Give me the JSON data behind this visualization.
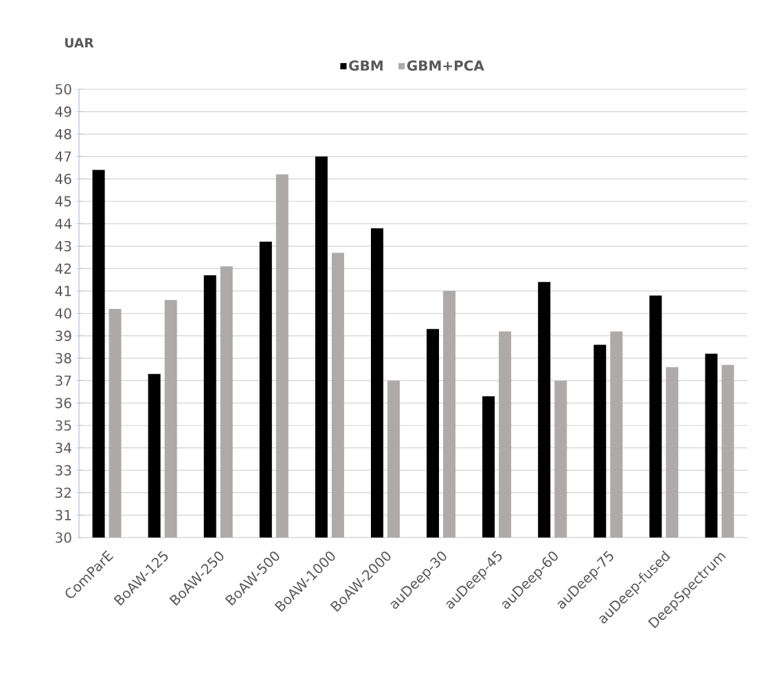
{
  "chart_data": {
    "type": "bar",
    "ylabel": "UAR",
    "categories": [
      "ComParE",
      "BoAW-125",
      "BoAW-250",
      "BoAW-500",
      "BoAW-1000",
      "BoAW-2000",
      "auDeep-30",
      "auDeep-45",
      "auDeep-60",
      "auDeep-75",
      "auDeep-fused",
      "DeepSpectrum"
    ],
    "series": [
      {
        "name": "GBM",
        "color": "#000000",
        "values": [
          46.4,
          37.3,
          41.7,
          43.2,
          47.0,
          43.8,
          39.3,
          36.3,
          41.4,
          38.6,
          40.8,
          38.2
        ]
      },
      {
        "name": "GBM+PCA",
        "color": "#aeaaaa",
        "values": [
          40.2,
          40.6,
          42.1,
          46.2,
          42.7,
          37.0,
          41.0,
          39.2,
          37.0,
          39.2,
          37.6,
          37.7
        ]
      }
    ],
    "ylim": [
      30,
      50
    ],
    "yticks": [
      30,
      31,
      32,
      33,
      34,
      35,
      36,
      37,
      38,
      39,
      40,
      41,
      42,
      43,
      44,
      45,
      46,
      47,
      48,
      49,
      50
    ],
    "grid": "y",
    "legend": "top"
  }
}
